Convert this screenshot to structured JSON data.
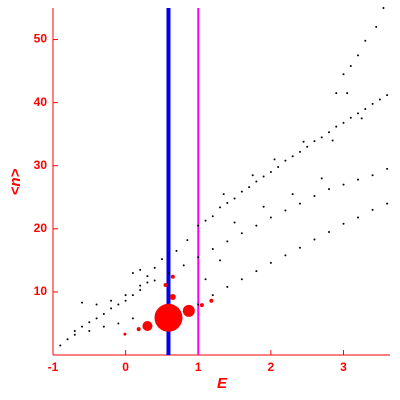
{
  "chart_data": {
    "type": "scatter",
    "x_label": "E",
    "y_label": "<n>",
    "xlim": [
      -1,
      3.64
    ],
    "ylim": [
      0,
      55
    ],
    "xticks": [
      -1,
      0,
      1,
      2,
      3
    ],
    "yticks": [
      10,
      20,
      30,
      40,
      50
    ],
    "axis_color": "#ff0000",
    "vlines": [
      {
        "value": 0.59,
        "color": "#0000ee"
      },
      {
        "value": 1.0,
        "color": "#ff00ff"
      }
    ],
    "series": [
      {
        "color": "#000000",
        "x": [
          -0.9,
          -0.8,
          -0.7,
          -0.6,
          -0.5,
          -0.4,
          -0.3,
          -0.2,
          -0.1,
          0,
          0.1,
          0.2,
          0.3,
          0.4,
          0.5,
          0.7,
          0.85,
          1.0,
          1.1,
          1.2,
          1.3,
          1.4,
          1.5,
          1.6,
          1.7,
          1.8,
          1.9,
          2.0,
          2.1,
          2.2,
          2.3,
          2.4,
          2.5,
          2.6,
          2.7,
          2.8,
          2.9,
          3.0,
          3.1,
          3.2,
          3.3,
          3.4,
          3.5,
          3.6,
          1.75,
          2.05,
          2.45,
          2.85,
          3.25,
          1.35,
          -0.6,
          -0.4,
          -0.2,
          0,
          0.2,
          0.4,
          0.6,
          0.8,
          1.0,
          1.2,
          1.4,
          1.6,
          1.8,
          2.0,
          2.2,
          2.4,
          2.6,
          2.8,
          3.0,
          3.2,
          3.4,
          3.6,
          1.5,
          1.9,
          2.3,
          2.7,
          -0.7,
          -0.5,
          -0.3,
          -0.1,
          0.1,
          1.0,
          1.2,
          1.4,
          1.6,
          1.8,
          2.0,
          2.2,
          2.4,
          2.6,
          2.8,
          3.0,
          3.2,
          3.4,
          3.6,
          1.1,
          1.3,
          0.3,
          0.2,
          0.1,
          3.0,
          3.2,
          3.45,
          3.55,
          3.3,
          2.9,
          3.1,
          3.05
        ],
        "values": [
          1.5,
          2.5,
          3.8,
          4.5,
          5.2,
          5.8,
          6.5,
          7.4,
          8.0,
          8.6,
          9.5,
          10.3,
          12.5,
          13.8,
          15.2,
          16.5,
          18.2,
          20.5,
          21.3,
          22.0,
          23.4,
          24.1,
          24.8,
          25.9,
          26.6,
          27.5,
          28.3,
          29.0,
          29.8,
          30.8,
          31.5,
          32.2,
          33.0,
          33.9,
          34.5,
          35.3,
          36.2,
          36.8,
          37.6,
          38.3,
          39.0,
          39.8,
          40.5,
          41.2,
          28.5,
          31.0,
          33.8,
          34.0,
          37.5,
          25.5,
          8.3,
          8.0,
          8.6,
          9.5,
          11.0,
          11.8,
          13.0,
          14.2,
          15.5,
          16.8,
          18.0,
          19.3,
          20.5,
          21.8,
          22.9,
          24.0,
          25.2,
          26.3,
          27.0,
          27.8,
          28.5,
          29.5,
          21.0,
          23.5,
          25.5,
          28.0,
          3.2,
          3.8,
          4.5,
          5.0,
          5.8,
          8.0,
          9.5,
          10.8,
          12.0,
          13.3,
          14.6,
          15.8,
          17.0,
          18.3,
          19.5,
          20.8,
          21.8,
          23.0,
          24.0,
          12.0,
          15.0,
          11.5,
          13.5,
          13.0,
          44.5,
          47.5,
          52,
          55,
          49.8,
          41.5,
          45.8,
          41.5
        ],
        "sizes": []
      },
      {
        "color": "#ff0000",
        "x": [
          0.59,
          0.87,
          0.3,
          0.65,
          0.65,
          0.55,
          1.18,
          1.05,
          0.18,
          -0.01
        ],
        "values": [
          5.9,
          7.0,
          4.6,
          9.2,
          12.4,
          11.1,
          8.6,
          7.9,
          4.1,
          3.3
        ],
        "sizes": [
          14,
          6,
          5,
          3,
          2,
          2,
          2,
          2,
          2,
          1.5
        ]
      }
    ]
  }
}
